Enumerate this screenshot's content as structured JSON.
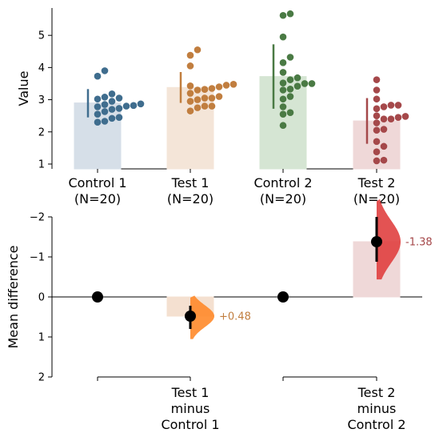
{
  "chart_data": [
    {
      "type": "scatter",
      "subtype": "swarm-with-bars",
      "ylabel": "Value",
      "ylim": [
        0.85,
        5.85
      ],
      "yticks": [
        1,
        2,
        3,
        4,
        5
      ],
      "groups": [
        {
          "name": "Control 1",
          "n_label": "(N=20)",
          "color": "#3f6d8e",
          "bar_color": "#d6dfe8",
          "mean": 2.9,
          "sd_range": [
            2.45,
            3.33
          ],
          "values": [
            2.3,
            2.33,
            2.42,
            2.45,
            2.55,
            2.63,
            2.7,
            2.73,
            2.78,
            2.8,
            2.82,
            2.85,
            2.87,
            2.95,
            3.02,
            3.05,
            3.08,
            3.18,
            3.73,
            3.9
          ]
        },
        {
          "name": "Test 1",
          "n_label": "(N=20)",
          "color": "#c17e3f",
          "bar_color": "#f4e5d8",
          "mean": 3.38,
          "sd_range": [
            2.9,
            3.86
          ],
          "values": [
            2.65,
            2.75,
            2.8,
            2.8,
            2.95,
            3.0,
            3.05,
            3.05,
            3.1,
            3.2,
            3.3,
            3.32,
            3.35,
            3.4,
            3.43,
            3.45,
            3.48,
            4.05,
            4.38,
            4.55
          ]
        },
        {
          "name": "Control 2",
          "n_label": "(N=20)",
          "color": "#4a7a44",
          "bar_color": "#d5e5d3",
          "mean": 3.72,
          "sd_range": [
            2.72,
            4.72
          ],
          "values": [
            2.2,
            2.55,
            2.6,
            2.78,
            3.02,
            3.1,
            3.3,
            3.33,
            3.42,
            3.5,
            3.5,
            3.52,
            3.62,
            3.68,
            3.85,
            4.15,
            4.32,
            4.95,
            5.62,
            5.67
          ]
        },
        {
          "name": "Test 2",
          "n_label": "(N=20)",
          "color": "#a5484a",
          "bar_color": "#efd8d8",
          "mean": 2.34,
          "sd_range": [
            1.63,
            3.05
          ],
          "values": [
            1.1,
            1.12,
            1.38,
            1.55,
            1.7,
            2.05,
            2.08,
            2.28,
            2.4,
            2.4,
            2.45,
            2.48,
            2.5,
            2.72,
            2.78,
            2.83,
            2.83,
            3.02,
            3.3,
            3.62
          ]
        }
      ]
    },
    {
      "type": "bar",
      "subtype": "estimation-plot",
      "ylabel": "Mean difference",
      "ylim": [
        2,
        -2
      ],
      "yticks": [
        2,
        1,
        0,
        -1,
        -2
      ],
      "ytick_labels": [
        "2",
        "1",
        "0",
        "−1",
        "−2"
      ],
      "reference_points": [
        {
          "group": "Control 1",
          "value": 0
        },
        {
          "group": "Control 2",
          "value": 0
        }
      ],
      "comparisons": [
        {
          "label_lines": [
            "Test 1",
            "minus",
            "Control 1"
          ],
          "delta": 0.48,
          "delta_label": "+0.48",
          "ci": [
            0.22,
            0.8
          ],
          "color": "#ff8a2a",
          "bar_color": "#f4e0d0",
          "label_color": "#c17e3f"
        },
        {
          "label_lines": [
            "Test 2",
            "minus",
            "Control 2"
          ],
          "delta": -1.38,
          "delta_label": "-1.38",
          "ci": [
            -2.0,
            -0.88
          ],
          "color": "#e04040",
          "bar_color": "#efd8d8",
          "label_color": "#a5484a"
        }
      ]
    }
  ]
}
